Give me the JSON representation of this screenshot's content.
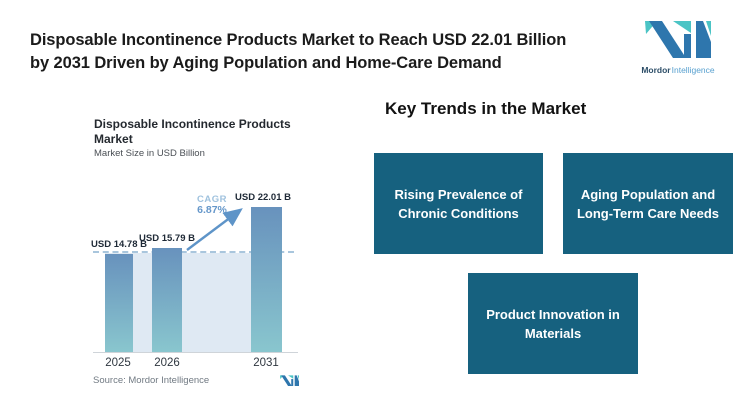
{
  "header": {
    "title_line1": "Disposable Incontinence Products Market to Reach USD 22.01 Billion",
    "title_line2": "by 2031 Driven by Aging Population and Home-Care Demand"
  },
  "brand": {
    "name_primary": "Mordor",
    "name_secondary": "Intelligence",
    "logo_dark_blue": "#2e76ad",
    "logo_teal": "#4bc4c5"
  },
  "chart": {
    "title_line1": "Disposable Incontinence Products",
    "title_line2": "Market",
    "subtitle": "Market Size in USD Billion",
    "source": "Source: Mordor Intelligence"
  },
  "chart_data": {
    "type": "bar",
    "title": "Disposable Incontinence Products Market",
    "subtitle": "Market Size in USD Billion",
    "categories": [
      "2025",
      "2026",
      "2031"
    ],
    "values": [
      14.78,
      15.79,
      22.01
    ],
    "value_labels": [
      "USD 14.78 B",
      "USD 15.79 B",
      "USD 22.01 B"
    ],
    "annotation": {
      "label": "CAGR",
      "value": "6.87%"
    },
    "ylim": [
      0,
      25.3
    ],
    "grid": false,
    "reference_line_value": 14.95,
    "reference_line_style": "dashed",
    "bar_color_top": "#6892bd",
    "bar_color_bottom": "#89c6ce",
    "band_color": "#dfe9f3",
    "source": "Source: Mordor Intelligence"
  },
  "trends": {
    "heading": "Key Trends in the Market",
    "box_color": "#16617f",
    "boxes": [
      {
        "label": "Rising Prevalence of Chronic Conditions"
      },
      {
        "label": "Aging Population and Long-Term Care Needs"
      },
      {
        "label": "Product Innovation in Materials"
      }
    ]
  }
}
